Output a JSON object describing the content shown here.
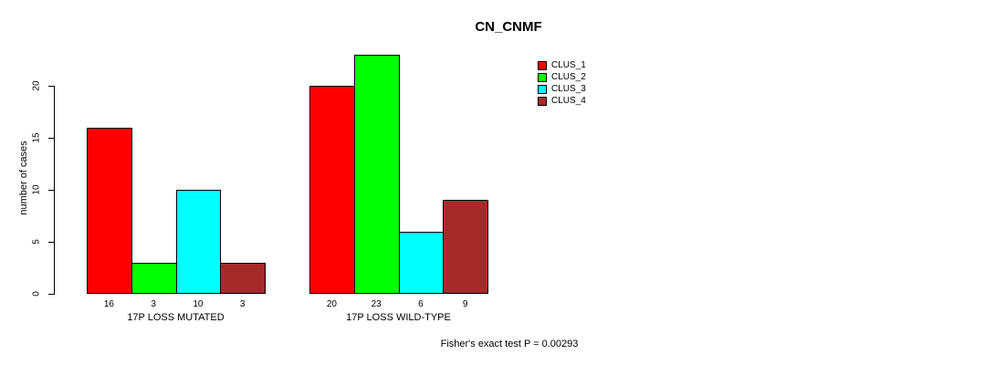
{
  "chart_data": {
    "type": "bar",
    "title": "CN_CNMF",
    "ylabel": "number of cases",
    "xlabel": "",
    "groups": [
      "17P LOSS MUTATED",
      "17P LOSS WILD-TYPE"
    ],
    "series": [
      {
        "name": "CLUS_1",
        "color": "#FF0000",
        "values": [
          16,
          20
        ]
      },
      {
        "name": "CLUS_2",
        "color": "#00FF00",
        "values": [
          3,
          23
        ]
      },
      {
        "name": "CLUS_3",
        "color": "#00FFFF",
        "values": [
          10,
          6
        ]
      },
      {
        "name": "CLUS_4",
        "color": "#A52A2A",
        "values": [
          3,
          9
        ]
      }
    ],
    "yticks": [
      0,
      5,
      10,
      15,
      20
    ],
    "ylim": [
      0,
      23
    ],
    "bar_value_labels": {
      "mutated": [
        16,
        3,
        10,
        3
      ],
      "wild_type": [
        20,
        23,
        6,
        9
      ]
    },
    "legend_position": "top-right",
    "grid": false,
    "annotation": "Fisher's exact test P = 0.00293"
  }
}
